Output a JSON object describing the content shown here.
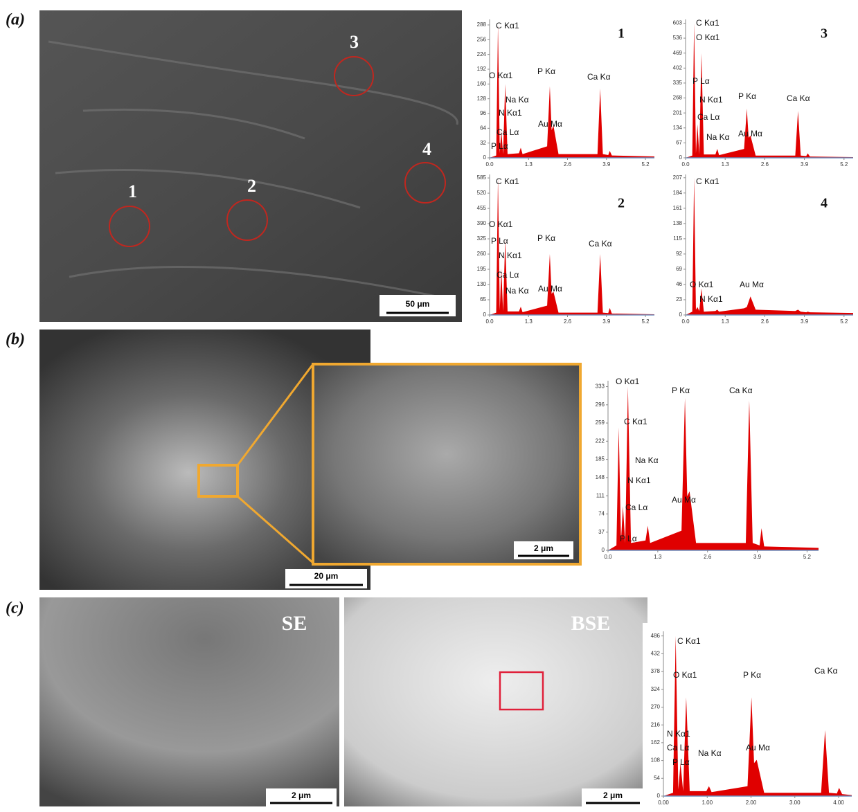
{
  "figure": {
    "panels": [
      {
        "label": "(a)",
        "scale_bar": "50 μm",
        "markers": [
          "1",
          "2",
          "3",
          "4"
        ]
      },
      {
        "label": "(b)",
        "scale_bars": [
          "20 μm",
          "2 μm"
        ]
      },
      {
        "label": "(c)",
        "images": [
          {
            "tag": "SE",
            "scale_bar": "2 μm"
          },
          {
            "tag": "BSE",
            "scale_bar": "2 μm"
          }
        ]
      }
    ]
  },
  "chart_data": [
    {
      "type": "area",
      "title": "1",
      "color": "#e00000",
      "x": [
        0,
        0.22,
        0.28,
        0.34,
        0.39,
        0.45,
        0.52,
        0.6,
        0.98,
        1.04,
        1.1,
        1.92,
        2.01,
        2.07,
        2.13,
        2.3,
        3.6,
        3.69,
        3.78,
        3.96,
        4.01,
        4.08,
        5.5
      ],
      "values": [
        0,
        5,
        288,
        10,
        60,
        8,
        160,
        8,
        10,
        22,
        8,
        25,
        155,
        60,
        70,
        8,
        8,
        150,
        8,
        6,
        15,
        5,
        3
      ],
      "xlim": [
        0,
        5.5
      ],
      "ylim": [
        0,
        300
      ],
      "xticks": [
        {
          "value": 0,
          "label": "0.0"
        },
        1.3,
        2.6,
        3.9,
        5.2
      ],
      "yticks": [
        0,
        32,
        64,
        96,
        128,
        160,
        192,
        224,
        256,
        288
      ],
      "annotations": [
        "C Kα1",
        "O Kα1",
        "Na Kα",
        "N Kα1",
        "Ca Lα",
        "P Lα",
        "P Kα",
        "Au Mα",
        "Ca Kα"
      ]
    },
    {
      "type": "area",
      "title": "3",
      "color": "#e00000",
      "x": [
        0,
        0.22,
        0.28,
        0.34,
        0.39,
        0.45,
        0.52,
        0.6,
        0.98,
        1.04,
        1.1,
        1.92,
        2.01,
        2.07,
        2.13,
        2.3,
        3.6,
        3.69,
        3.78,
        3.96,
        4.01,
        4.08,
        5.5
      ],
      "values": [
        0,
        10,
        603,
        20,
        150,
        15,
        469,
        15,
        15,
        40,
        12,
        40,
        220,
        90,
        100,
        10,
        10,
        210,
        10,
        8,
        20,
        6,
        3
      ],
      "xlim": [
        0,
        5.5
      ],
      "ylim": [
        0,
        620
      ],
      "xticks": [
        {
          "value": 0,
          "label": "0.0"
        },
        1.3,
        2.6,
        3.9,
        5.2
      ],
      "yticks": [
        0,
        67,
        134,
        201,
        268,
        335,
        402,
        469,
        536,
        603
      ],
      "annotations": [
        "C Kα1",
        "O Kα1",
        "P Lα",
        "N Kα1",
        "Ca Lα",
        "Na Kα",
        "P Kα",
        "Au Mα",
        "Ca Kα"
      ]
    },
    {
      "type": "area",
      "title": "2",
      "color": "#e00000",
      "x": [
        0,
        0.22,
        0.28,
        0.34,
        0.39,
        0.45,
        0.52,
        0.6,
        0.98,
        1.04,
        1.1,
        1.92,
        2.01,
        2.07,
        2.13,
        2.3,
        3.6,
        3.69,
        3.78,
        3.96,
        4.01,
        4.08,
        5.5
      ],
      "values": [
        0,
        10,
        585,
        20,
        200,
        15,
        320,
        15,
        15,
        35,
        12,
        40,
        260,
        90,
        100,
        10,
        10,
        260,
        10,
        8,
        30,
        6,
        3
      ],
      "xlim": [
        0,
        5.5
      ],
      "ylim": [
        0,
        600
      ],
      "xticks": [
        {
          "value": 0,
          "label": "0.0"
        },
        1.3,
        2.6,
        3.9,
        5.2
      ],
      "yticks": [
        0,
        65,
        130,
        195,
        260,
        325,
        390,
        455,
        520,
        585
      ],
      "annotations": [
        "C Kα1",
        "O Kα1",
        "P Lα",
        "N Kα1",
        "Ca Lα",
        "Na Kα",
        "P Kα",
        "Au Mα",
        "Ca Kα"
      ]
    },
    {
      "type": "area",
      "title": "4",
      "color": "#e00000",
      "x": [
        0,
        0.22,
        0.28,
        0.34,
        0.39,
        0.45,
        0.52,
        0.6,
        0.98,
        1.04,
        1.1,
        1.92,
        2.01,
        2.07,
        2.13,
        2.3,
        3.6,
        3.69,
        3.78,
        3.96,
        4.01,
        4.08,
        5.5
      ],
      "values": [
        0,
        5,
        207,
        8,
        12,
        6,
        40,
        5,
        6,
        8,
        5,
        10,
        12,
        20,
        28,
        8,
        6,
        8,
        5,
        4,
        5,
        4,
        3
      ],
      "xlim": [
        0,
        5.5
      ],
      "ylim": [
        0,
        212
      ],
      "xticks": [
        {
          "value": 0,
          "label": "0.0"
        },
        1.3,
        2.6,
        3.9,
        5.2
      ],
      "yticks": [
        0,
        23,
        46,
        69,
        92,
        115,
        138,
        161,
        184,
        207
      ],
      "annotations": [
        "C Kα1",
        "O Kα1",
        "N Kα1",
        "Au Mα"
      ]
    },
    {
      "type": "area",
      "color": "#e00000",
      "x": [
        0,
        0.22,
        0.28,
        0.34,
        0.39,
        0.45,
        0.52,
        0.6,
        0.98,
        1.04,
        1.1,
        1.92,
        2.01,
        2.07,
        2.13,
        2.3,
        3.6,
        3.69,
        3.78,
        3.96,
        4.01,
        4.08,
        5.5
      ],
      "values": [
        0,
        10,
        250,
        20,
        90,
        15,
        333,
        15,
        20,
        50,
        15,
        40,
        310,
        110,
        120,
        15,
        15,
        305,
        15,
        10,
        45,
        8,
        5
      ],
      "xlim": [
        0,
        5.5
      ],
      "ylim": [
        0,
        345
      ],
      "xticks": [
        {
          "value": 0,
          "label": "0.0"
        },
        1.3,
        2.6,
        3.9,
        5.2
      ],
      "yticks": [
        0,
        37,
        74,
        111,
        148,
        185,
        222,
        259,
        296,
        333
      ],
      "annotations": [
        "O Kα1",
        "C Kα1",
        "Na Kα",
        "N Kα1",
        "Ca Lα",
        "P Lα",
        "P Kα",
        "Au Mα",
        "Ca Kα"
      ]
    },
    {
      "type": "area",
      "color": "#e00000",
      "x": [
        0,
        0.22,
        0.28,
        0.34,
        0.39,
        0.45,
        0.52,
        0.6,
        0.98,
        1.04,
        1.1,
        1.92,
        2.01,
        2.07,
        2.13,
        2.3,
        3.6,
        3.69,
        3.78,
        3.96,
        4.01,
        4.08,
        4.3
      ],
      "values": [
        0,
        10,
        486,
        20,
        100,
        15,
        300,
        15,
        15,
        30,
        12,
        30,
        300,
        100,
        110,
        10,
        10,
        200,
        10,
        8,
        25,
        6,
        3
      ],
      "xlim": [
        0,
        4.3
      ],
      "ylim": [
        0,
        500
      ],
      "xticks": [
        {
          "value": 0,
          "label": "0.00"
        },
        {
          "value": 1,
          "label": "1.00"
        },
        {
          "value": 2,
          "label": "2.00"
        },
        {
          "value": 3,
          "label": "3.00"
        },
        {
          "value": 4,
          "label": "4.00"
        }
      ],
      "yticks": [
        0,
        54,
        108,
        162,
        216,
        270,
        324,
        378,
        432,
        486
      ],
      "annotations": [
        "C Kα1",
        "O Kα1",
        "P Kα",
        "Ca Kα",
        "N Kα1",
        "Ca Lα",
        "Na Kα",
        "P Lα",
        "Au Mα"
      ]
    }
  ]
}
